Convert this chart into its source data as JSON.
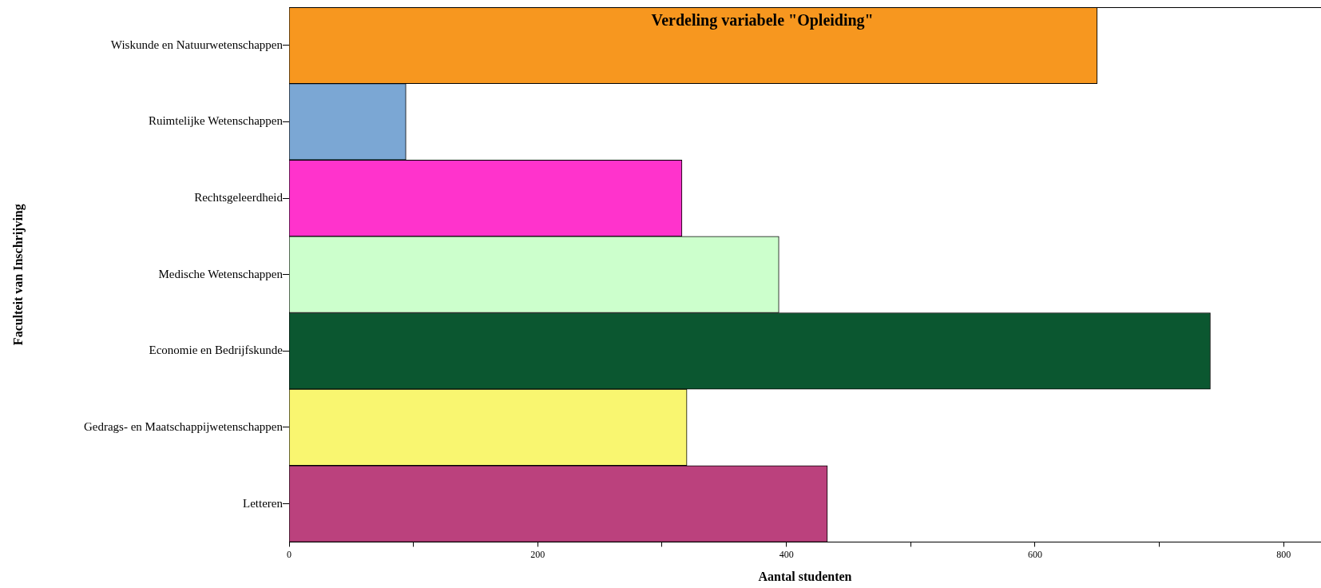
{
  "chart_data": {
    "type": "bar",
    "orientation": "horizontal",
    "title": "Verdeling variabele \"Opleiding\"",
    "xlabel": "Aantal studenten",
    "ylabel": "Faculteit van Inschrijving",
    "categories": [
      "Wiskunde en Natuurwetenschappen",
      "Ruimtelijke Wetenschappen",
      "Rechtsgeleerdheid",
      "Medische Wetenschappen",
      "Economie en Bedrijfskunde",
      "Gedrags- en Maatschappijwetenschappen",
      "Letteren"
    ],
    "values": [
      650,
      94,
      316,
      394,
      741,
      320,
      433
    ],
    "colors": [
      "#f7971f",
      "#7ba7d4",
      "#ff33cc",
      "#ccffcc",
      "#0b5730",
      "#f9f670",
      "#bb417d"
    ],
    "xlim": [
      0,
      830
    ],
    "xticks": [
      0,
      {
        "value": 100,
        "label": null
      },
      200,
      {
        "value": 300,
        "label": null
      },
      400,
      {
        "value": 500,
        "label": null
      },
      600,
      {
        "value": 700,
        "label": null
      },
      800
    ],
    "grid": false,
    "legend": false
  }
}
